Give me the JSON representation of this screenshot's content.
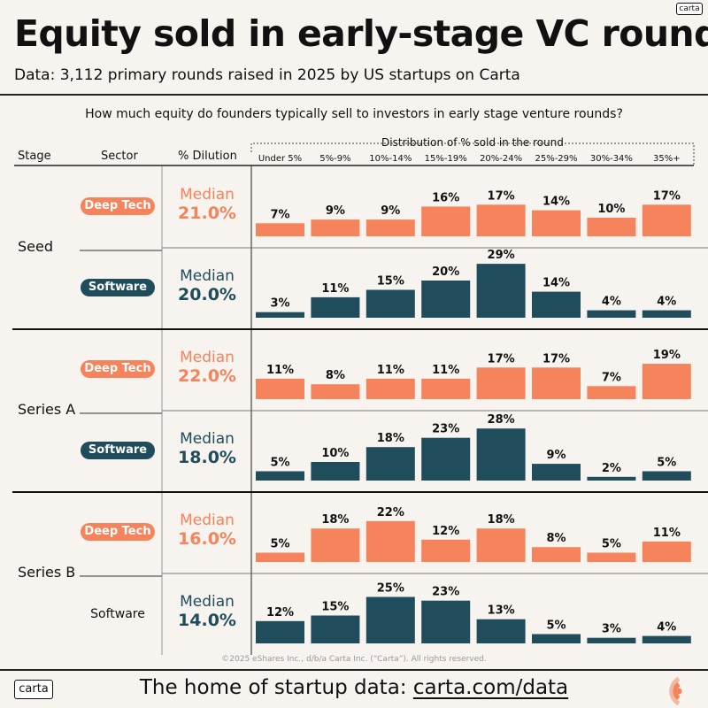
{
  "brand": {
    "logo_text": "carta"
  },
  "title": "Equity sold in early-stage VC rounds",
  "subtitle": "Data: 3,112 primary rounds raised in 2025 by US startups on Carta",
  "question": "How much equity do founders typically sell to investors in early stage venture rounds?",
  "columns": {
    "stage": "Stage",
    "sector": "Sector",
    "dilution": "% Dilution",
    "distribution": "Distribution of % sold in the round"
  },
  "median_label": "Median",
  "colors": {
    "deep_tech": "#f5835b",
    "software": "#1f4d5c",
    "text_dark": "#111111",
    "background": "#f7f3ef"
  },
  "footer": {
    "copyright": "©2025 eShares Inc., d/b/a Carta Inc. (“Carta”). All rights reserved.",
    "tagline_prefix": "The home of startup data: ",
    "tagline_link": "carta.com/data"
  },
  "chart_data": {
    "type": "bar",
    "title": "Equity sold in early-stage VC rounds",
    "categories": [
      "Under 5%",
      "5%-9%",
      "10%-14%",
      "15%-19%",
      "20%-24%",
      "25%-29%",
      "30%-34%",
      "35%+"
    ],
    "y_unit": "% of rounds",
    "stages": [
      {
        "stage": "Seed",
        "rows": [
          {
            "sector": "Deep Tech",
            "median": "21.0%",
            "values": [
              7,
              9,
              9,
              16,
              17,
              14,
              10,
              17
            ]
          },
          {
            "sector": "Software",
            "median": "20.0%",
            "values": [
              3,
              11,
              15,
              20,
              29,
              14,
              4,
              4
            ]
          }
        ]
      },
      {
        "stage": "Series A",
        "rows": [
          {
            "sector": "Deep Tech",
            "median": "22.0%",
            "values": [
              11,
              8,
              11,
              11,
              17,
              17,
              7,
              19
            ]
          },
          {
            "sector": "Software",
            "median": "18.0%",
            "values": [
              5,
              10,
              18,
              23,
              28,
              9,
              2,
              5
            ]
          }
        ]
      },
      {
        "stage": "Series B",
        "rows": [
          {
            "sector": "Deep Tech",
            "median": "16.0%",
            "values": [
              5,
              18,
              22,
              12,
              18,
              8,
              5,
              11
            ]
          },
          {
            "sector": "Software",
            "median": "14.0%",
            "values": [
              12,
              15,
              25,
              23,
              13,
              5,
              3,
              4
            ]
          }
        ]
      }
    ]
  }
}
